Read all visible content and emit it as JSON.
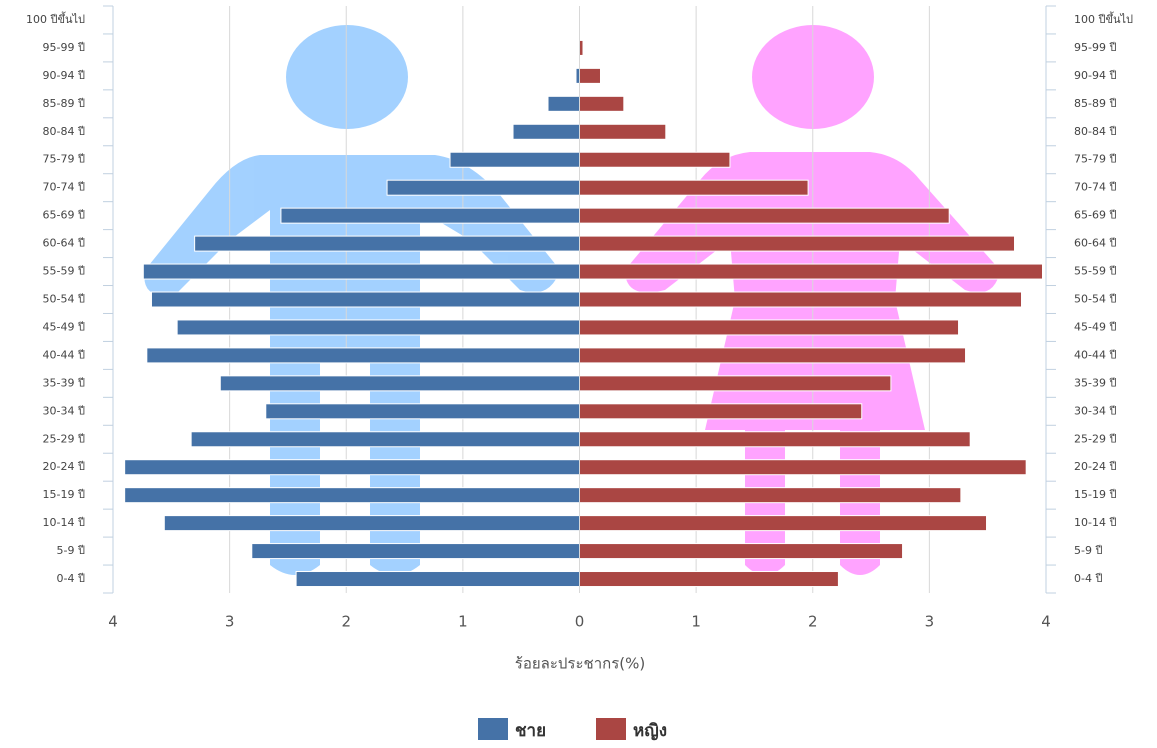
{
  "chart_data": {
    "type": "population-pyramid",
    "x_label": "ร้อยละประชากร(%)",
    "categories": [
      "0-4 ปี",
      "5-9 ปี",
      "10-14 ปี",
      "15-19 ปี",
      "20-24 ปี",
      "25-29 ปี",
      "30-34 ปี",
      "35-39 ปี",
      "40-44 ปี",
      "45-49 ปี",
      "50-54 ปี",
      "55-59 ปี",
      "60-64 ปี",
      "65-69 ปี",
      "70-74 ปี",
      "75-79 ปี",
      "80-84 ปี",
      "85-89 ปี",
      "90-94 ปี",
      "95-99 ปี",
      "100 ปีขึ้นไป"
    ],
    "series": [
      {
        "name": "ชาย",
        "color": "#4572a7",
        "values": [
          -2.43,
          -2.81,
          -3.56,
          -3.9,
          -3.9,
          -3.33,
          -2.69,
          -3.08,
          -3.71,
          -3.45,
          -3.67,
          -3.74,
          -3.3,
          -2.56,
          -1.65,
          -1.11,
          -0.57,
          -0.27,
          -0.03,
          0,
          0
        ]
      },
      {
        "name": "หญิง",
        "color": "#aa4643",
        "values": [
          2.22,
          2.77,
          3.49,
          3.27,
          3.83,
          3.35,
          2.42,
          2.67,
          3.31,
          3.25,
          3.79,
          3.97,
          3.73,
          3.17,
          1.96,
          1.29,
          0.74,
          0.38,
          0.18,
          0.03,
          0
        ]
      }
    ],
    "xlim": [
      -4,
      4
    ],
    "xticks": [
      {
        "value": -4,
        "label": "4"
      },
      {
        "value": -3,
        "label": "3"
      },
      {
        "value": -2,
        "label": "2"
      },
      {
        "value": -1,
        "label": "1"
      },
      0,
      1,
      2,
      3,
      4
    ],
    "grid": true
  }
}
